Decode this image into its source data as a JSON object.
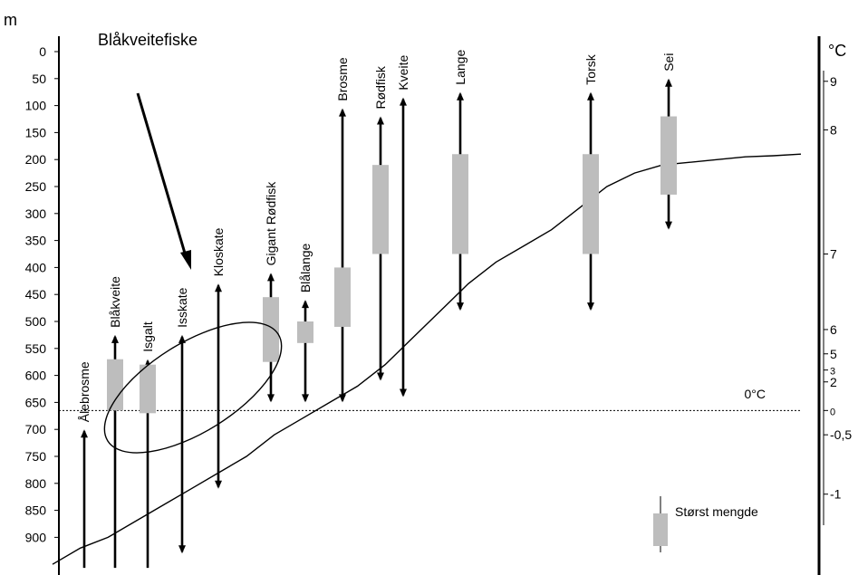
{
  "chart_data": {
    "type": "depth-range",
    "title": "Blåkveitefiske",
    "left_axis": {
      "unit": "m",
      "ticks": [
        0,
        50,
        100,
        150,
        200,
        250,
        300,
        350,
        400,
        450,
        500,
        550,
        600,
        650,
        700,
        750,
        800,
        850,
        900
      ],
      "range": [
        0,
        960
      ]
    },
    "right_axis": {
      "unit": "°C",
      "ticks": [
        {
          "label": "9",
          "depth": 55
        },
        {
          "label": "8",
          "depth": 145
        },
        {
          "label": "7",
          "depth": 375
        },
        {
          "label": "6",
          "depth": 515
        },
        {
          "label": "5",
          "depth": 560
        },
        {
          "label": "3",
          "depth": 590
        },
        {
          "label": "2",
          "depth": 612
        },
        {
          "label": "0",
          "depth": 665
        },
        {
          "label": "-0,5",
          "depth": 710
        },
        {
          "label": "-1",
          "depth": 820
        }
      ]
    },
    "zero_line": {
      "depth": 665,
      "label": "0°C"
    },
    "species": [
      {
        "name": "Ålebrosme",
        "min": 700,
        "max": 960,
        "core": null
      },
      {
        "name": "Blåkveite",
        "min": 525,
        "max": 960,
        "core": [
          570,
          665
        ]
      },
      {
        "name": "Isgalt",
        "min": 570,
        "max": 960,
        "core": [
          580,
          670
        ]
      },
      {
        "name": "Isskate",
        "min": 525,
        "max": 930,
        "core": null
      },
      {
        "name": "Kloskate",
        "min": 430,
        "max": 810,
        "core": null
      },
      {
        "name": "Gigant Rødfisk",
        "min": 410,
        "max": 650,
        "core": [
          455,
          575
        ]
      },
      {
        "name": "Blålange",
        "min": 460,
        "max": 650,
        "core": [
          500,
          540
        ]
      },
      {
        "name": "Brosme",
        "min": 105,
        "max": 650,
        "core": [
          400,
          510
        ]
      },
      {
        "name": "Rødfisk",
        "min": 120,
        "max": 610,
        "core": [
          210,
          375
        ]
      },
      {
        "name": "Kveite",
        "min": 85,
        "max": 640,
        "core": null
      },
      {
        "name": "Lange",
        "min": 75,
        "max": 480,
        "core": [
          190,
          375
        ]
      },
      {
        "name": "Torsk",
        "min": 75,
        "max": 480,
        "core": [
          190,
          375
        ]
      },
      {
        "name": "Sei",
        "min": 50,
        "max": 330,
        "core": [
          120,
          265
        ]
      }
    ],
    "temperature_curve_depths": [
      950,
      920,
      900,
      870,
      840,
      810,
      780,
      750,
      710,
      680,
      650,
      620,
      580,
      530,
      480,
      430,
      390,
      360,
      330,
      290,
      250,
      225,
      210,
      205,
      200,
      195,
      193,
      190
    ],
    "legend": {
      "label": "Størst mengde"
    }
  },
  "colors": {
    "axis": "#000000",
    "core_fill": "#bdbdbd",
    "background": "#ffffff"
  }
}
